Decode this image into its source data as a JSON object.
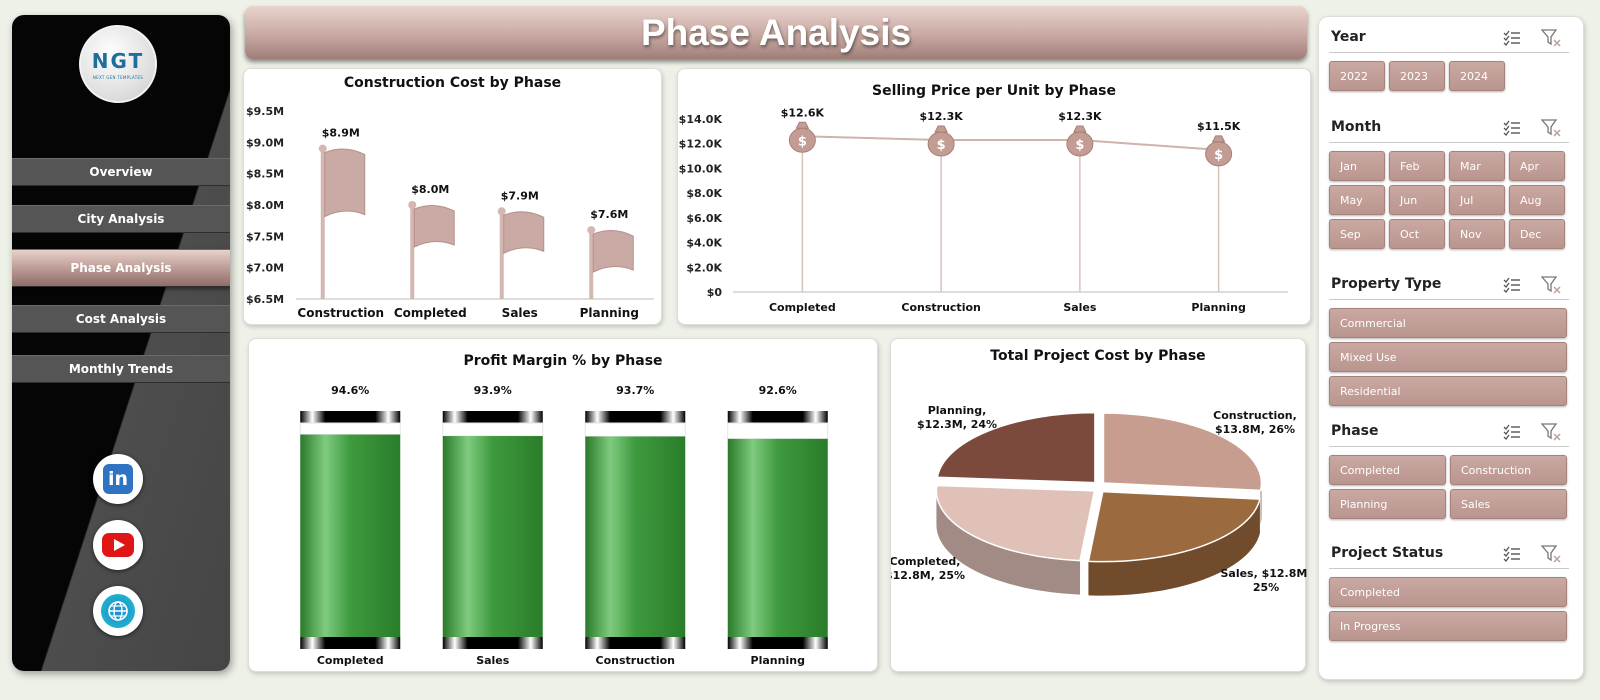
{
  "nav": {
    "logo": {
      "text": "NGT",
      "sub": "NEXT GEN TEMPLATES"
    },
    "items": [
      "Overview",
      "City Analysis",
      "Phase Analysis",
      "Cost Analysis",
      "Monthly Trends"
    ],
    "active": "Phase Analysis",
    "social": [
      "linkedin-icon",
      "youtube-icon",
      "website-icon"
    ]
  },
  "header": {
    "title": "Phase Analysis"
  },
  "colors": {
    "accent": "#b9958e",
    "bar_green": "#3e9a3e",
    "flag": "#c9aaa4"
  },
  "chart_data": [
    {
      "type": "bar",
      "title": "Construction Cost by Phase",
      "categories": [
        "Construction",
        "Completed",
        "Sales",
        "Planning"
      ],
      "values": [
        8.9,
        8.0,
        7.9,
        7.6
      ],
      "data_labels": [
        "$8.9M",
        "$8.0M",
        "$7.9M",
        "$7.6M"
      ],
      "ylim": [
        6.5,
        9.5
      ],
      "yticks": [
        "$6.5M",
        "$7.0M",
        "$7.5M",
        "$8.0M",
        "$8.5M",
        "$9.0M",
        "$9.5M"
      ],
      "marker": "flag-icon"
    },
    {
      "type": "line",
      "title": "Selling Price per Unit by Phase",
      "categories": [
        "Completed",
        "Construction",
        "Sales",
        "Planning"
      ],
      "values": [
        12.6,
        12.3,
        12.3,
        11.5
      ],
      "data_labels": [
        "$12.6K",
        "$12.3K",
        "$12.3K",
        "$11.5K"
      ],
      "ylim": [
        0,
        14
      ],
      "yticks": [
        "$0",
        "$2.0K",
        "$4.0K",
        "$6.0K",
        "$8.0K",
        "$10.0K",
        "$12.0K",
        "$14.0K"
      ],
      "marker": "money-bag-icon"
    },
    {
      "type": "bar",
      "title": "Profit Margin % by Phase",
      "categories": [
        "Completed",
        "Sales",
        "Construction",
        "Planning"
      ],
      "values": [
        94.6,
        93.9,
        93.7,
        92.6
      ],
      "data_labels": [
        "94.6%",
        "93.9%",
        "93.7%",
        "92.6%"
      ],
      "ylim": [
        0,
        100
      ]
    },
    {
      "type": "pie",
      "title": "Total Project Cost by Phase",
      "slices": [
        {
          "label": "Construction,",
          "detail": "$13.8M, 26%",
          "value": 13.8,
          "color": "#c79d90"
        },
        {
          "label": "Sales, $12.8M,",
          "detail": "25%",
          "value": 12.8,
          "color": "#9b6a3e"
        },
        {
          "label": "Completed,",
          "detail": "$12.8M, 25%",
          "value": 12.8,
          "color": "#dfc1b7"
        },
        {
          "label": "Planning,",
          "detail": "$12.3M, 24%",
          "value": 12.3,
          "color": "#7b4a3c"
        }
      ]
    }
  ],
  "filters": [
    {
      "name": "Year",
      "options": [
        "2022",
        "2023",
        "2024"
      ]
    },
    {
      "name": "Month",
      "options": [
        "Jan",
        "Feb",
        "Mar",
        "Apr",
        "May",
        "Jun",
        "Jul",
        "Aug",
        "Sep",
        "Oct",
        "Nov",
        "Dec"
      ]
    },
    {
      "name": "Property Type",
      "options": [
        "Commercial",
        "Mixed Use",
        "Residential"
      ]
    },
    {
      "name": "Phase",
      "options": [
        "Completed",
        "Construction",
        "Planning",
        "Sales"
      ]
    },
    {
      "name": "Project Status",
      "options": [
        "Completed",
        "In Progress"
      ]
    }
  ]
}
